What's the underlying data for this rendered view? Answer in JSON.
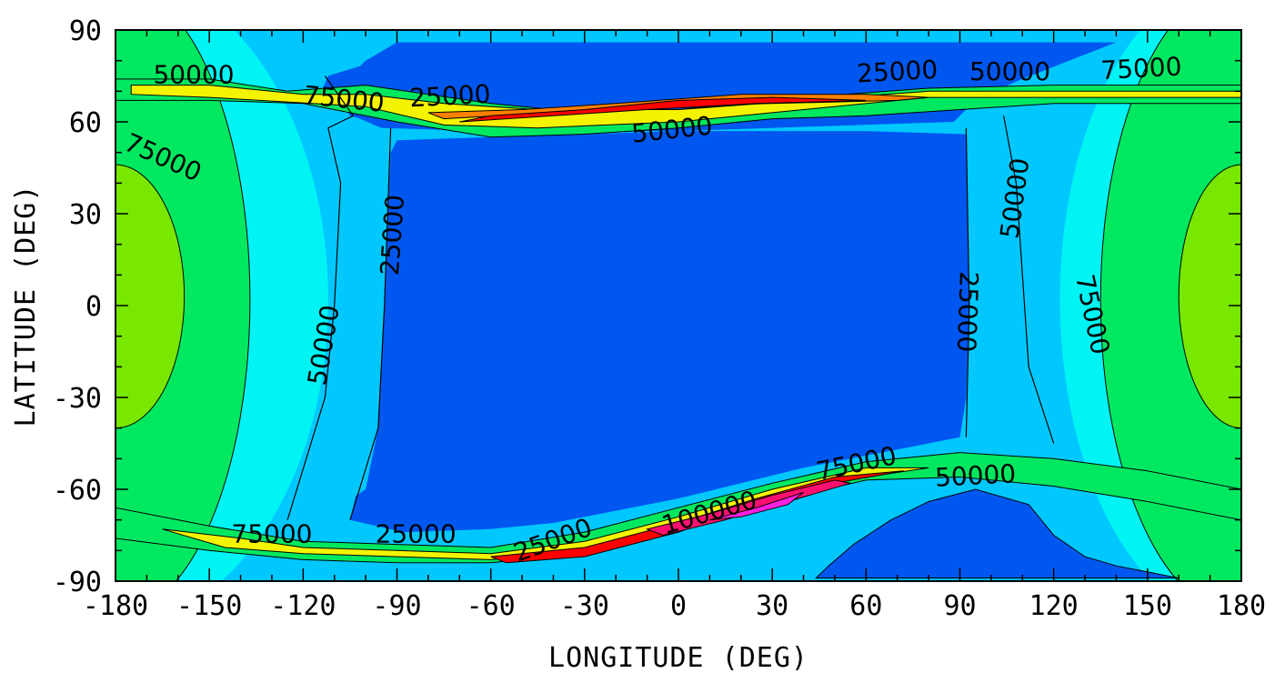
{
  "colors": {
    "level_0": "#0057f0",
    "level_1": "#00c8ff",
    "level_2": "#00f4f4",
    "level_3": "#00e860",
    "level_4": "#78e800",
    "level_5": "#f4f400",
    "level_6": "#ff8000",
    "level_7": "#ff0000",
    "level_8": "#ff1070",
    "level_9": "#ff20e0"
  },
  "chart_data": {
    "type": "heatmap",
    "subtype": "filled contour map (latitude-longitude)",
    "title": "",
    "xlabel": "LONGITUDE (DEG)",
    "ylabel": "LATITUDE (DEG)",
    "xlim": [
      -180,
      180
    ],
    "ylim": [
      -90,
      90
    ],
    "x_ticks": [
      -180,
      -150,
      -120,
      -90,
      -60,
      -30,
      0,
      30,
      60,
      90,
      120,
      150,
      180
    ],
    "y_ticks": [
      90,
      60,
      30,
      0,
      -30,
      -60,
      -90
    ],
    "x_tick_labels": [
      "-180",
      "-150",
      "-120",
      "-90",
      "-60",
      "-30",
      "0",
      "30",
      "60",
      "90",
      "120",
      "150",
      "180"
    ],
    "y_tick_labels": [
      "90",
      "60",
      "30",
      "0",
      "-30",
      "-60",
      "-90"
    ],
    "contour_levels": [
      25000,
      50000,
      75000,
      100000
    ],
    "contour_labels": [
      {
        "text": "50000",
        "lon": -155,
        "lat": 75,
        "angle": 0
      },
      {
        "text": "75000",
        "lon": -107,
        "lat": 67,
        "angle": 6
      },
      {
        "text": "25000",
        "lon": -73,
        "lat": 68,
        "angle": -3
      },
      {
        "text": "25000",
        "lon": 70,
        "lat": 76,
        "angle": -3
      },
      {
        "text": "50000",
        "lon": 106,
        "lat": 76,
        "angle": 0
      },
      {
        "text": "75000",
        "lon": 148,
        "lat": 77,
        "angle": -3
      },
      {
        "text": "50000",
        "lon": -2,
        "lat": 57,
        "angle": -6
      },
      {
        "text": "75000",
        "lon": -165,
        "lat": 48,
        "angle": 24
      },
      {
        "text": "25000",
        "lon": -91,
        "lat": 23,
        "angle": -86
      },
      {
        "text": "50000",
        "lon": -113,
        "lat": -13,
        "angle": -80
      },
      {
        "text": "50000",
        "lon": 108,
        "lat": 35,
        "angle": -82
      },
      {
        "text": "25000",
        "lon": 92,
        "lat": -2,
        "angle": 92
      },
      {
        "text": "75000",
        "lon": 132,
        "lat": -3,
        "angle": 78
      },
      {
        "text": "75000",
        "lon": -130,
        "lat": -75,
        "angle": 0
      },
      {
        "text": "25000",
        "lon": -84,
        "lat": -75,
        "angle": 0
      },
      {
        "text": "25000",
        "lon": -40,
        "lat": -77,
        "angle": -20
      },
      {
        "text": "100000",
        "lon": 10,
        "lat": -68,
        "angle": -16
      },
      {
        "text": "75000",
        "lon": 57,
        "lat": -52,
        "angle": -12
      },
      {
        "text": "50000",
        "lon": 95,
        "lat": -56,
        "angle": -3
      }
    ]
  }
}
